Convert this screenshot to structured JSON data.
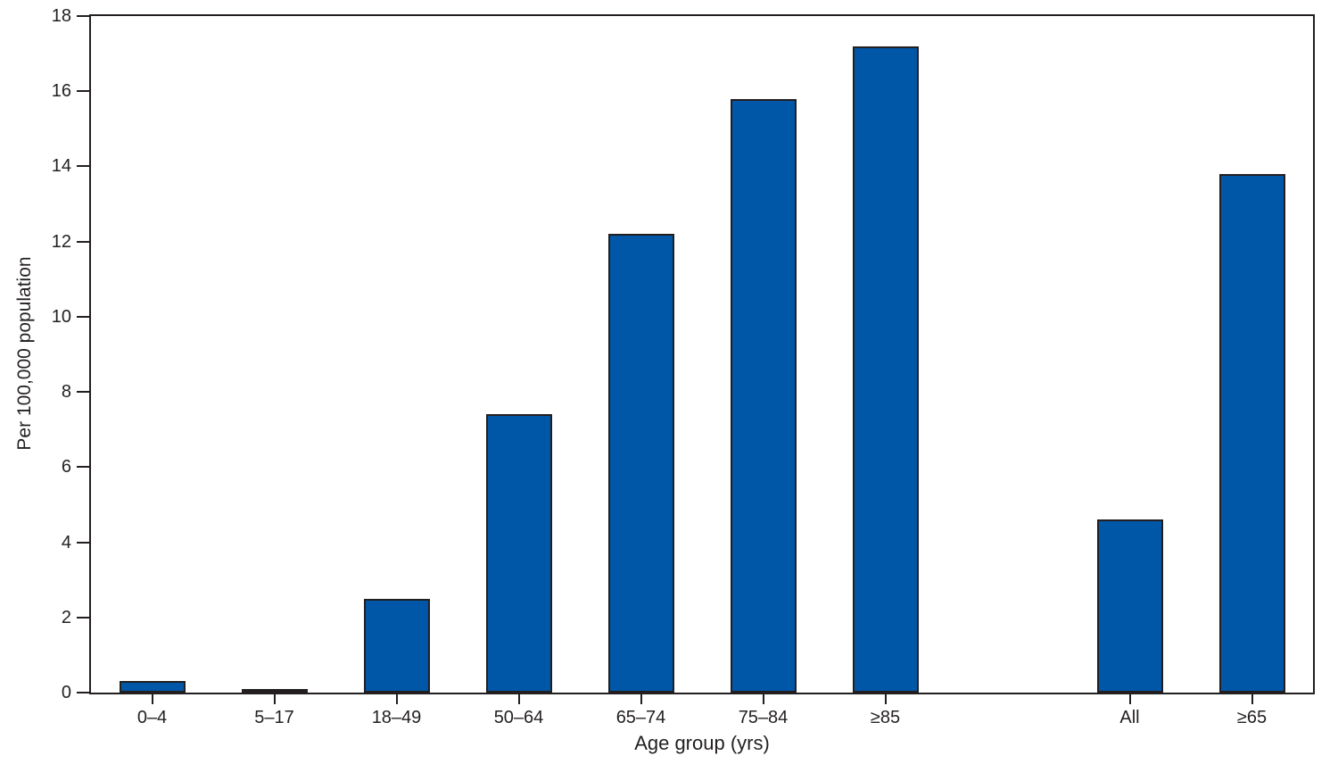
{
  "chart_data": {
    "type": "bar",
    "title": "",
    "xlabel": "Age group (yrs)",
    "ylabel": "Per 100,000 population",
    "categories": [
      "0–4",
      "5–17",
      "18–49",
      "50–64",
      "65–74",
      "75–84",
      "≥85",
      "",
      "All",
      "≥65"
    ],
    "values": [
      0.3,
      0.1,
      2.5,
      7.4,
      12.2,
      15.8,
      17.2,
      null,
      4.6,
      13.8
    ],
    "ylim": [
      0,
      18
    ],
    "yticks": [
      0,
      2,
      4,
      6,
      8,
      10,
      12,
      14,
      16,
      18
    ],
    "grid": false,
    "legend": null,
    "frame": true,
    "colors": {
      "bar_fill": "#0057a8",
      "bar_border": "#231f20",
      "axis": "#231f20",
      "text": "#231f20",
      "background": "#ffffff"
    }
  }
}
